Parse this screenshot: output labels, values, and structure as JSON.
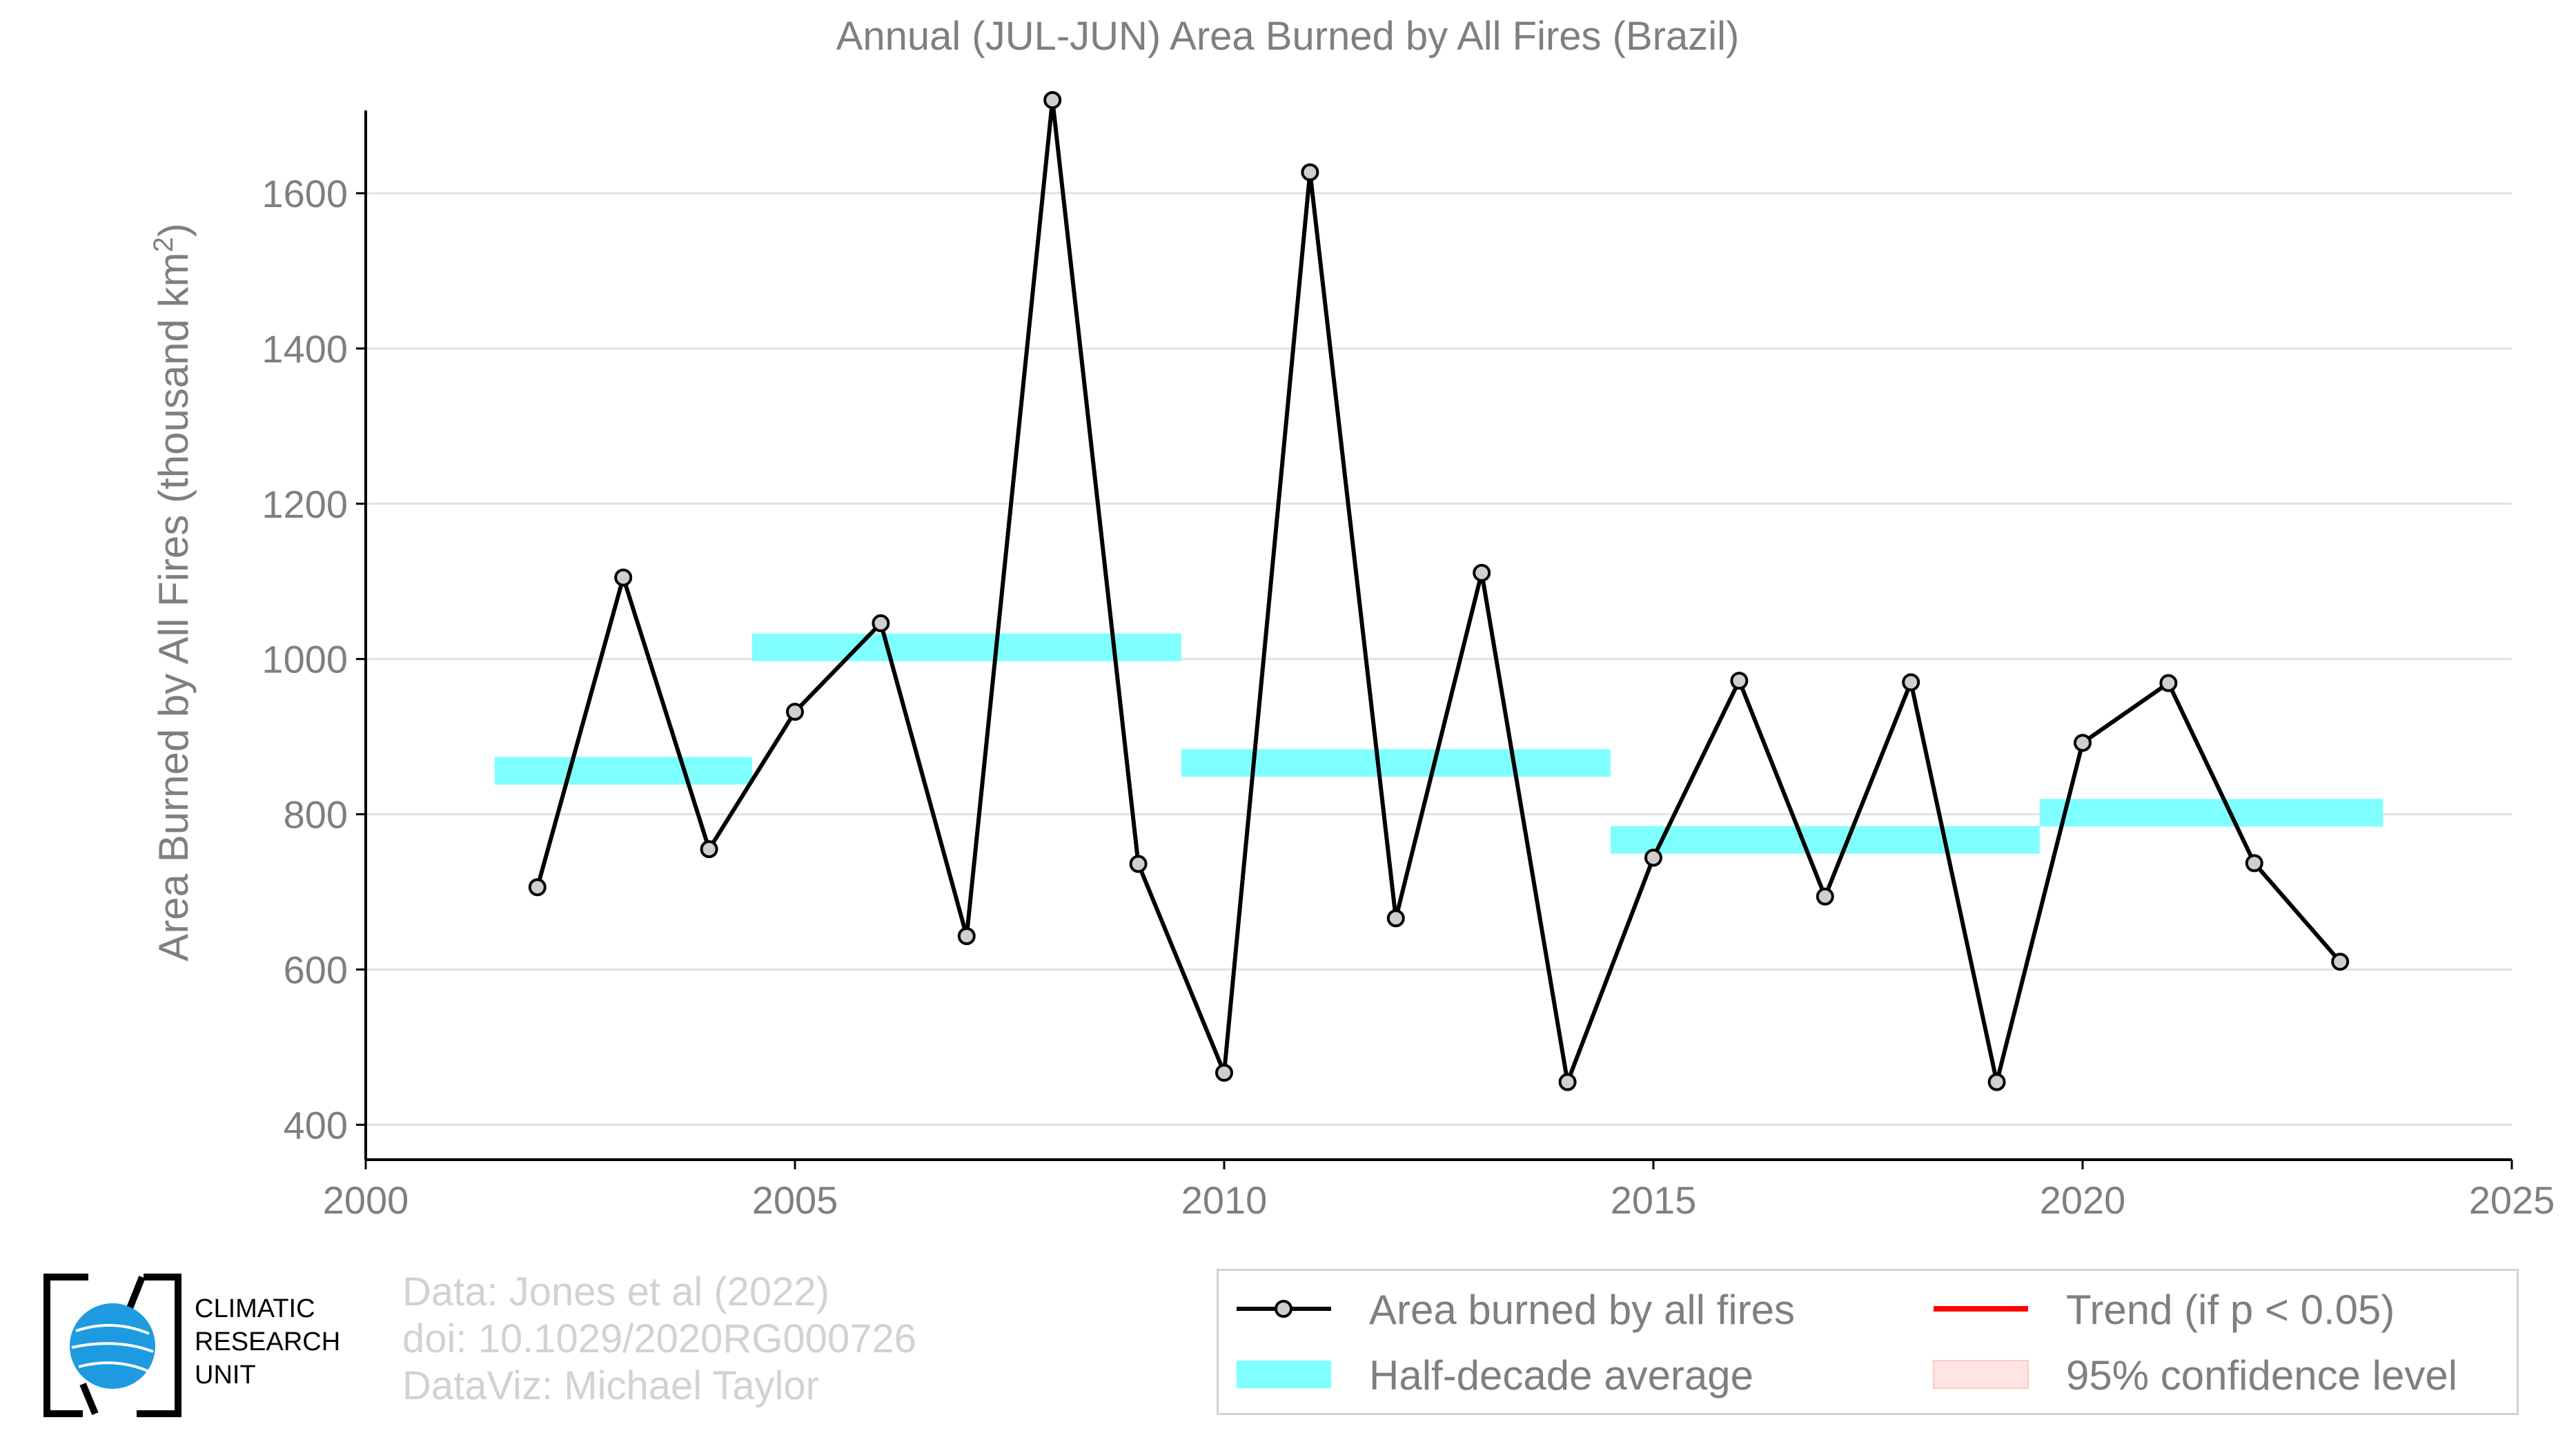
{
  "chart_data": {
    "type": "line",
    "title": "Annual (JUL-JUN) Area Burned by All Fires (Brazil)",
    "ylabel_main": "Area Burned by All Fires (thousand km",
    "ylabel_sup": "2",
    "ylabel_end": ")",
    "xlim": [
      2000,
      2025
    ],
    "ylim": [
      355,
      1760
    ],
    "x_ticks": [
      2000,
      2005,
      2010,
      2015,
      2020,
      2025
    ],
    "y_ticks": [
      400,
      600,
      800,
      1000,
      1200,
      1400,
      1600
    ],
    "grid": true,
    "series": [
      {
        "name": "Area burned by all fires",
        "color": "#000000",
        "marker_fill": "#cfcfcf",
        "x": [
          2002,
          2003,
          2004,
          2005,
          2006,
          2007,
          2008,
          2009,
          2010,
          2011,
          2012,
          2013,
          2014,
          2015,
          2016,
          2017,
          2018,
          2019,
          2020,
          2021,
          2022,
          2023
        ],
        "y": [
          706,
          1105,
          755,
          932,
          1046,
          643,
          1720,
          736,
          467,
          1627,
          666,
          1111,
          455,
          744,
          972,
          694,
          970,
          455,
          892,
          969,
          737,
          610
        ]
      }
    ],
    "half_decade_averages": {
      "name": "Half-decade average",
      "color": "#7fffff",
      "segments": [
        {
          "x0": 2001.5,
          "x1": 2004.5,
          "y": 856
        },
        {
          "x0": 2004.5,
          "x1": 2009.5,
          "y": 1015
        },
        {
          "x0": 2009.5,
          "x1": 2014.5,
          "y": 866
        },
        {
          "x0": 2014.5,
          "x1": 2019.5,
          "y": 767
        },
        {
          "x0": 2019.5,
          "x1": 2023.5,
          "y": 802
        }
      ]
    },
    "trend": {
      "name": "Trend (if p < 0.05)",
      "color": "#ff0000"
    },
    "confidence": {
      "name": "95% confidence level",
      "color": "#ffe4e4"
    }
  },
  "credits": {
    "line1": "Data: Jones et al (2022)",
    "line2": "doi: 10.1029/2020RG000726",
    "line3": "DataViz: Michael Taylor"
  },
  "logo": {
    "line1": "CLIMATIC",
    "line2": "RESEARCH",
    "line3": "UNIT",
    "globe_color": "#1e9be0"
  }
}
